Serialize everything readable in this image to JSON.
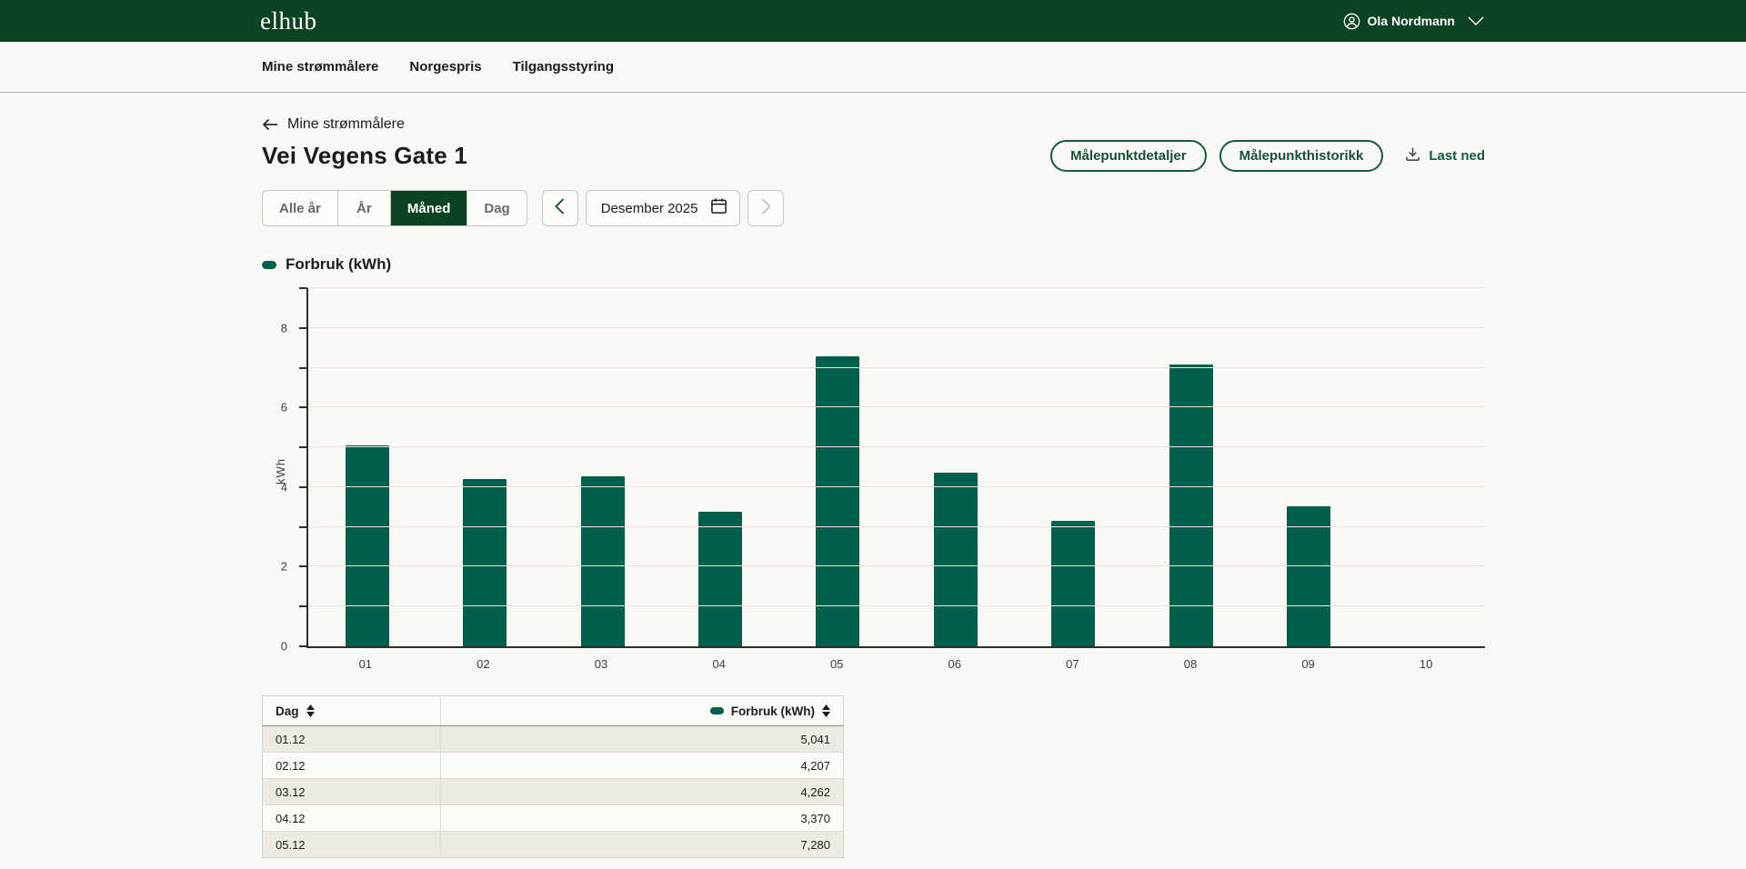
{
  "header": {
    "logo": "elhub",
    "user": {
      "name": "Ola Nordmann"
    }
  },
  "nav": {
    "items": [
      {
        "label": "Mine strømmålere"
      },
      {
        "label": "Norgespris"
      },
      {
        "label": "Tilgangsstyring"
      }
    ]
  },
  "page": {
    "breadcrumb": "Mine strømmålere",
    "title": "Vei Vegens Gate 1",
    "actions": {
      "details": "Målepunktdetaljer",
      "history": "Målepunkthistorikk",
      "download": "Last ned"
    },
    "period_tabs": [
      {
        "label": "Alle år",
        "selected": false
      },
      {
        "label": "År",
        "selected": false
      },
      {
        "label": "Måned",
        "selected": true
      },
      {
        "label": "Dag",
        "selected": false
      }
    ],
    "date_picker": {
      "value": "Desember 2025"
    },
    "legend": {
      "label": "Forbruk (kWh)"
    }
  },
  "chart_data": {
    "type": "bar",
    "title": "Forbruk (kWh)",
    "categories": [
      "01",
      "02",
      "03",
      "04",
      "05",
      "06",
      "07",
      "08",
      "09",
      "10"
    ],
    "values": [
      5.041,
      4.207,
      4.262,
      3.37,
      7.28,
      4.37,
      3.15,
      7.08,
      3.52,
      null
    ],
    "xlabel": "",
    "ylabel": "kWh",
    "ylim": [
      0,
      9
    ],
    "ytick_labels": [
      0,
      2,
      4,
      6,
      8
    ],
    "grid": true,
    "legend_position": "top-left",
    "bar_color": "#00604b"
  },
  "table": {
    "columns": [
      {
        "label": "Dag",
        "sortable": true
      },
      {
        "label": "Forbruk (kWh)",
        "sortable": true,
        "legend_color": "#00604b"
      }
    ],
    "rows": [
      {
        "dag": "01.12",
        "forbruk": "5,041"
      },
      {
        "dag": "02.12",
        "forbruk": "4,207"
      },
      {
        "dag": "03.12",
        "forbruk": "4,262"
      },
      {
        "dag": "04.12",
        "forbruk": "3,370"
      },
      {
        "dag": "05.12",
        "forbruk": "7,280"
      }
    ]
  },
  "colors": {
    "header_bg": "#0c4423",
    "accent_green": "#00604b",
    "page_bg": "#faf8f3",
    "selected_segment_bg": "#0c4423"
  }
}
